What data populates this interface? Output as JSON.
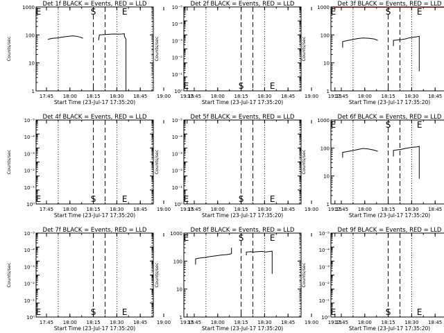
{
  "chart_data": [
    {
      "type": "line",
      "title": "Det 1f BLACK = Events, RED = LLD",
      "xlabel": "Start Time (23-Jul-17 17:35:20)",
      "ylabel": "Counts/sec",
      "ylim": [
        1,
        1000
      ],
      "ytick_labels": [
        "1",
        "10",
        "100",
        "1000"
      ],
      "xtick_labels": [
        "17:45",
        "18:00",
        "18:15",
        "18:30",
        "18:45",
        "19:00",
        "19:15"
      ],
      "markers": [
        "E",
        "S",
        "E"
      ],
      "marker_pos": "top",
      "series": [
        {
          "name": "Events",
          "color": "#000000",
          "x": [
            15,
            17,
            22,
            27,
            32,
            37,
            42,
            47,
            52,
            57,
            60
          ],
          "y": [
            68,
            72,
            76,
            78,
            82,
            86,
            90,
            92,
            90,
            82,
            76
          ]
        },
        {
          "name": "Events",
          "color": "#000000",
          "x": [
            80,
            81,
            85,
            90,
            95,
            100,
            105,
            110,
            113,
            113,
            115,
            115
          ],
          "y": [
            65,
            100,
            102,
            104,
            106,
            108,
            106,
            108,
            110,
            90,
            70,
            1
          ]
        }
      ]
    },
    {
      "type": "line",
      "title": "Det 2f BLACK = Events, RED = LLD",
      "xlabel": "Start Time (23-Jul-17 17:35:20)",
      "ylabel": "Counts/sec",
      "ylim": [
        1,
        1000000
      ],
      "ytick_labels": [
        "10⁰",
        "10⁻¹",
        "10⁻²",
        "10⁻³",
        "10⁻⁴",
        "10⁻⁵"
      ],
      "xtick_labels": [
        "17:45",
        "18:00",
        "18:15",
        "18:30",
        "18:45",
        "19:00",
        "19:15"
      ],
      "markers": [
        "E",
        "S",
        "E"
      ],
      "marker_pos": "bottom",
      "series": []
    },
    {
      "type": "line",
      "title": "Det 3f BLACK = Events, RED = LLD",
      "xlabel": "Start Time (23-Jul-17 17:35:20)",
      "ylabel": "Counts/sec",
      "ylim": [
        1,
        1000
      ],
      "ytick_labels": [
        "1",
        "10",
        "100",
        "1000"
      ],
      "xtick_labels": [
        "17:45",
        "18:00",
        "18:15",
        "18:30",
        "18:45",
        "19:00",
        "19:15"
      ],
      "markers": [
        "E",
        "S",
        "E"
      ],
      "marker_pos": "top",
      "series": [
        {
          "name": "LLD",
          "color": "#ff0000",
          "x": [
            0,
            150
          ],
          "y": [
            980,
            980
          ]
        },
        {
          "name": "Events",
          "color": "#000000",
          "x": [
            15,
            15,
            20,
            27,
            34,
            41,
            48,
            55,
            60
          ],
          "y": [
            35,
            58,
            62,
            68,
            74,
            78,
            76,
            72,
            64
          ]
        },
        {
          "name": "Events",
          "color": "#000000",
          "x": [
            80,
            80,
            85,
            90,
            95,
            100,
            105,
            110,
            113,
            113
          ],
          "y": [
            40,
            64,
            66,
            68,
            72,
            78,
            82,
            86,
            90,
            5
          ]
        }
      ]
    },
    {
      "type": "line",
      "title": "Det 4f BLACK = Events, RED = LLD",
      "xlabel": "Start Time (23-Jul-17 17:35:20)",
      "ylabel": "Counts/sec",
      "ylim": [
        1,
        1000000
      ],
      "ytick_labels": [
        "10⁰",
        "10⁻¹",
        "10⁻²",
        "10⁻³",
        "10⁻⁴",
        "10⁻⁵"
      ],
      "xtick_labels": [
        "17:45",
        "18:00",
        "18:15",
        "18:30",
        "18:45",
        "19:00",
        "19:15"
      ],
      "markers": [
        "E",
        "S",
        "E"
      ],
      "marker_pos": "bottom",
      "series": []
    },
    {
      "type": "line",
      "title": "Det 5f BLACK = Events, RED = LLD",
      "xlabel": "Start Time (23-Jul-17 17:35:20)",
      "ylabel": "Counts/sec",
      "ylim": [
        1,
        1000000
      ],
      "ytick_labels": [
        "10⁰",
        "10⁻¹",
        "10⁻²",
        "10⁻³",
        "10⁻⁴",
        "10⁻⁵"
      ],
      "xtick_labels": [
        "17:45",
        "18:00",
        "18:15",
        "18:30",
        "18:45",
        "19:00",
        "19:15"
      ],
      "markers": [
        "E",
        "S",
        "E"
      ],
      "marker_pos": "bottom",
      "series": []
    },
    {
      "type": "line",
      "title": "Det 6f BLACK = Events, RED = LLD",
      "xlabel": "Start Time (23-Jul-17 17:35:20)",
      "ylabel": "Counts/sec",
      "ylim": [
        1,
        1000
      ],
      "ytick_labels": [
        "1",
        "10",
        "100",
        "1000"
      ],
      "xtick_labels": [
        "17:45",
        "18:00",
        "18:15",
        "18:30",
        "18:45",
        "19:00",
        "19:15"
      ],
      "markers": [
        "E",
        "S",
        "E"
      ],
      "marker_pos": "top",
      "series": [
        {
          "name": "Events",
          "color": "#000000",
          "x": [
            15,
            15,
            20,
            27,
            34,
            41,
            48,
            55,
            60
          ],
          "y": [
            45,
            70,
            74,
            80,
            88,
            96,
            92,
            84,
            76
          ]
        },
        {
          "name": "Events",
          "color": "#000000",
          "x": [
            80,
            80,
            85,
            90,
            95,
            100,
            105,
            110,
            113,
            113
          ],
          "y": [
            50,
            82,
            86,
            90,
            96,
            102,
            106,
            110,
            114,
            8
          ]
        }
      ]
    },
    {
      "type": "line",
      "title": "Det 7f BLACK = Events, RED = LLD",
      "xlabel": "Start Time (23-Jul-17 17:35:20)",
      "ylabel": "Counts/sec",
      "ylim": [
        1,
        1000000
      ],
      "ytick_labels": [
        "10⁰",
        "10⁻¹",
        "10⁻²",
        "10⁻³",
        "10⁻⁴",
        "10⁻⁵"
      ],
      "xtick_labels": [
        "17:45",
        "18:00",
        "18:15",
        "18:30",
        "18:45",
        "19:00",
        "19:15"
      ],
      "markers": [
        "E",
        "S",
        "E"
      ],
      "marker_pos": "bottom",
      "series": []
    },
    {
      "type": "line",
      "title": "Det 8f BLACK = Events, RED = LLD",
      "xlabel": "Start Time (23-Jul-17 17:35:20)",
      "ylabel": "Counts/sec",
      "ylim": [
        1,
        1000
      ],
      "ytick_labels": [
        "1",
        "10",
        "100",
        "1000"
      ],
      "xtick_labels": [
        "17:45",
        "18:00",
        "18:15",
        "18:30",
        "18:45",
        "19:00",
        "19:15"
      ],
      "markers": [
        "E",
        "S",
        "E"
      ],
      "marker_pos": "top",
      "series": [
        {
          "name": "Events",
          "color": "#000000",
          "x": [
            15,
            15,
            20,
            27,
            34,
            41,
            48,
            55,
            60,
            61,
            61
          ],
          "y": [
            75,
            120,
            128,
            135,
            145,
            155,
            165,
            170,
            180,
            190,
            300
          ]
        },
        {
          "name": "Events",
          "color": "#000000",
          "x": [
            80,
            80,
            85,
            90,
            95,
            100,
            105,
            110,
            113,
            113
          ],
          "y": [
            160,
            210,
            215,
            210,
            218,
            222,
            212,
            220,
            225,
            35
          ]
        }
      ]
    },
    {
      "type": "line",
      "title": "Det 9f BLACK = Events, RED = LLD",
      "xlabel": "Start Time (23-Jul-17 17:35:20)",
      "ylabel": "Counts/sec",
      "ylim": [
        1,
        1000000
      ],
      "ytick_labels": [
        "10⁰",
        "10⁻¹",
        "10⁻²",
        "10⁻³",
        "10⁻⁴",
        "10⁻⁵"
      ],
      "xtick_labels": [
        "17:45",
        "18:00",
        "18:15",
        "18:30",
        "18:45",
        "19:00",
        "19:15"
      ],
      "markers": [
        "E",
        "S",
        "E"
      ],
      "marker_pos": "bottom",
      "series": []
    }
  ]
}
